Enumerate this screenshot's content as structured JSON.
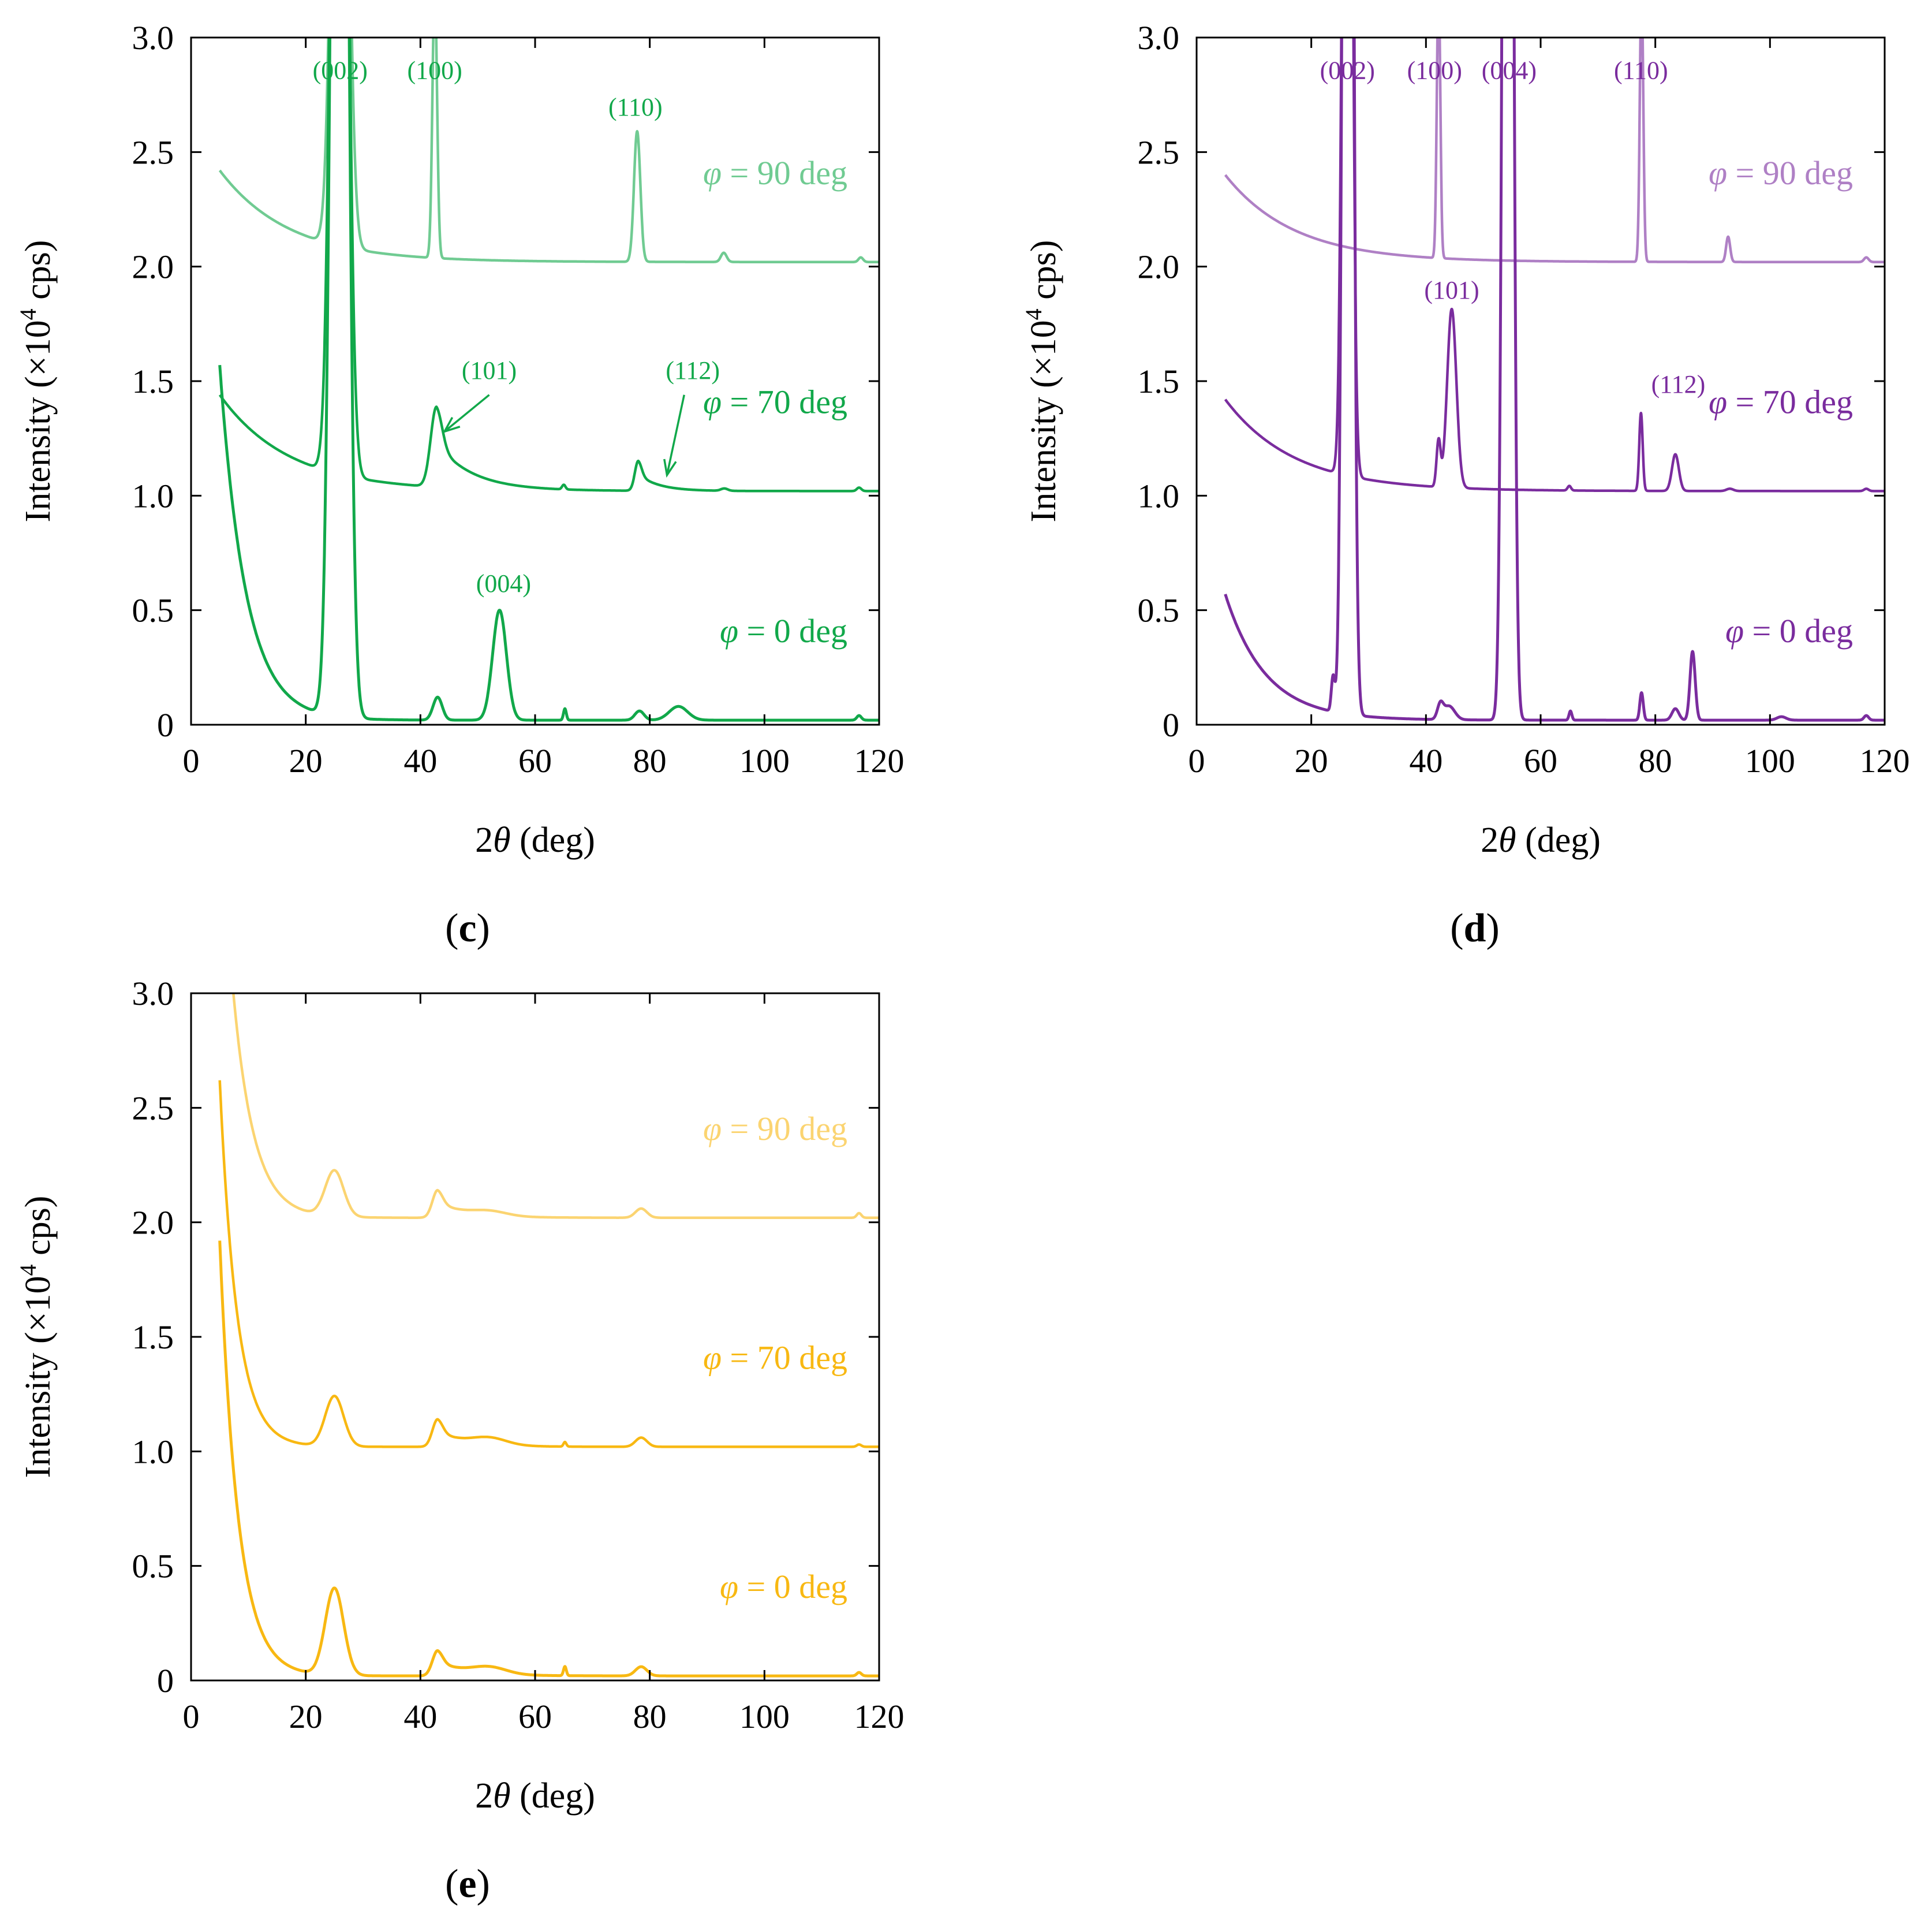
{
  "chart_data": [
    {
      "panel": "c",
      "caption_letter": "c",
      "type": "line",
      "color": "#11a84a",
      "xlabel_prefix": "2",
      "xlabel_symbol": "θ",
      "xlabel_suffix": " (deg)",
      "ylabel_prefix": "Intensity (×10",
      "ylabel_exp": "4",
      "ylabel_suffix": " cps)",
      "xlim": [
        0,
        120
      ],
      "ylim": [
        0,
        3.0
      ],
      "xticks": [
        0,
        20,
        40,
        60,
        80,
        100,
        120
      ],
      "xtick_labels": [
        "0",
        "20",
        "40",
        "60",
        "80",
        "100",
        "120"
      ],
      "yticks": [
        0,
        0.5,
        1.0,
        1.5,
        2.0,
        2.5,
        3.0
      ],
      "ytick_labels": [
        "0",
        "0.5",
        "1.0",
        "1.5",
        "2.0",
        "2.5",
        "3.0"
      ],
      "series": [
        {
          "name": "φ = 0 deg",
          "label_value": "= 0 deg",
          "label_symbol": "φ",
          "label_y": 0.36,
          "opacity": 1.0,
          "baseline": 0.02,
          "bg_amp": 1.55,
          "bg_decay": 4.5,
          "end_value": 0.02,
          "peaks": [
            {
              "x": 25.9,
              "h": 8.0,
              "w": 1.2
            },
            {
              "x": 43.0,
              "h": 0.1,
              "w": 0.8
            },
            {
              "x": 53.8,
              "h": 0.48,
              "w": 1.2
            },
            {
              "x": 65.2,
              "h": 0.05,
              "w": 0.25
            },
            {
              "x": 78.2,
              "h": 0.04,
              "w": 0.8
            },
            {
              "x": 85.0,
              "h": 0.06,
              "w": 1.6
            },
            {
              "x": 116.5,
              "h": 0.02,
              "w": 0.4
            }
          ]
        },
        {
          "name": "φ = 70 deg",
          "label_value": "= 70 deg",
          "label_symbol": "φ",
          "label_y": 1.36,
          "opacity": 1.0,
          "baseline": 1.02,
          "bg_amp": 0.42,
          "bg_decay": 12,
          "end_value": 1.02,
          "peaks": [
            {
              "x": 25.9,
              "h": 6.0,
              "w": 1.2
            },
            {
              "x": 42.8,
              "h": 0.35,
              "w": 1.0,
              "tail": 0.25
            },
            {
              "x": 65.0,
              "h": 0.02,
              "w": 0.3
            },
            {
              "x": 78.0,
              "h": 0.13,
              "w": 0.6,
              "tail": 0.12
            },
            {
              "x": 93.0,
              "h": 0.01,
              "w": 0.6
            },
            {
              "x": 116.5,
              "h": 0.015,
              "w": 0.4
            }
          ]
        },
        {
          "name": "φ = 90 deg",
          "label_value": "= 90 deg",
          "label_symbol": "φ",
          "label_y": 2.36,
          "opacity": 0.6,
          "baseline": 2.02,
          "bg_amp": 0.4,
          "bg_decay": 12,
          "end_value": 2.01,
          "peaks": [
            {
              "x": 26.0,
              "h": 4.0,
              "w": 1.2
            },
            {
              "x": 42.5,
              "h": 1.2,
              "w": 0.4
            },
            {
              "x": 77.8,
              "h": 0.57,
              "w": 0.55
            },
            {
              "x": 92.9,
              "h": 0.04,
              "w": 0.5
            },
            {
              "x": 116.8,
              "h": 0.02,
              "w": 0.4
            }
          ]
        }
      ],
      "annotations": [
        {
          "text": "(002)",
          "x": 26.0,
          "y": 2.82
        },
        {
          "text": "(100)",
          "x": 42.5,
          "y": 2.82
        },
        {
          "text": "(110)",
          "x": 77.5,
          "y": 2.66
        },
        {
          "text": "(101)",
          "x": 52.0,
          "y": 1.51
        },
        {
          "text": "(112)",
          "x": 87.5,
          "y": 1.51
        },
        {
          "text": "(004)",
          "x": 54.5,
          "y": 0.58
        }
      ],
      "arrows": [
        {
          "x1": 52,
          "y1": 1.44,
          "x2": 44.2,
          "y2": 1.28
        },
        {
          "x1": 86,
          "y1": 1.44,
          "x2": 83.0,
          "y2": 1.09
        }
      ]
    },
    {
      "panel": "d",
      "caption_letter": "d",
      "type": "line",
      "color": "#7a2c9e",
      "xlabel_prefix": "2",
      "xlabel_symbol": "θ",
      "xlabel_suffix": " (deg)",
      "ylabel_prefix": "Intensity (×10",
      "ylabel_exp": "4",
      "ylabel_suffix": " cps)",
      "xlim": [
        0,
        120
      ],
      "ylim": [
        0,
        3.0
      ],
      "xticks": [
        0,
        20,
        40,
        60,
        80,
        100,
        120
      ],
      "xtick_labels": [
        "0",
        "20",
        "40",
        "60",
        "80",
        "100",
        "120"
      ],
      "yticks": [
        0,
        0.5,
        1.0,
        1.5,
        2.0,
        2.5,
        3.0
      ],
      "ytick_labels": [
        "0",
        "0.5",
        "1.0",
        "1.5",
        "2.0",
        "2.5",
        "3.0"
      ],
      "series": [
        {
          "name": "φ = 0 deg",
          "label_value": "= 0 deg",
          "label_symbol": "φ",
          "label_y": 0.36,
          "opacity": 1.0,
          "baseline": 0.02,
          "bg_amp": 0.55,
          "bg_decay": 7,
          "end_value": 0.02,
          "peaks": [
            {
              "x": 23.8,
              "h": 0.15,
              "w": 0.3
            },
            {
              "x": 26.4,
              "h": 10.0,
              "w": 0.7
            },
            {
              "x": 42.5,
              "h": 0.06,
              "w": 0.5
            },
            {
              "x": 44.0,
              "h": 0.06,
              "w": 1.0
            },
            {
              "x": 54.3,
              "h": 10.0,
              "w": 0.7
            },
            {
              "x": 65.2,
              "h": 0.04,
              "w": 0.25
            },
            {
              "x": 77.6,
              "h": 0.12,
              "w": 0.3
            },
            {
              "x": 83.5,
              "h": 0.05,
              "w": 0.6
            },
            {
              "x": 86.5,
              "h": 0.3,
              "w": 0.45
            },
            {
              "x": 102.0,
              "h": 0.015,
              "w": 0.8
            },
            {
              "x": 116.8,
              "h": 0.02,
              "w": 0.4
            }
          ]
        },
        {
          "name": "φ = 70 deg",
          "label_value": "= 70 deg",
          "label_symbol": "φ",
          "label_y": 1.36,
          "opacity": 1.0,
          "baseline": 1.02,
          "bg_amp": 0.4,
          "bg_decay": 12,
          "end_value": 1.02,
          "peaks": [
            {
              "x": 26.3,
              "h": 6.0,
              "w": 0.7
            },
            {
              "x": 42.2,
              "h": 0.2,
              "w": 0.35
            },
            {
              "x": 44.5,
              "h": 0.78,
              "w": 0.8
            },
            {
              "x": 65.0,
              "h": 0.02,
              "w": 0.3
            },
            {
              "x": 77.5,
              "h": 0.34,
              "w": 0.3
            },
            {
              "x": 83.5,
              "h": 0.16,
              "w": 0.6
            },
            {
              "x": 93.0,
              "h": 0.01,
              "w": 0.6
            },
            {
              "x": 116.8,
              "h": 0.01,
              "w": 0.4
            }
          ]
        },
        {
          "name": "φ = 90 deg",
          "label_value": "= 90 deg",
          "label_symbol": "φ",
          "label_y": 2.36,
          "opacity": 0.6,
          "baseline": 2.02,
          "bg_amp": 0.38,
          "bg_decay": 12,
          "end_value": 2.01,
          "peaks": [
            {
              "x": 42.2,
              "h": 1.2,
              "w": 0.3
            },
            {
              "x": 77.6,
              "h": 1.2,
              "w": 0.3
            },
            {
              "x": 92.7,
              "h": 0.11,
              "w": 0.35
            },
            {
              "x": 116.8,
              "h": 0.02,
              "w": 0.4
            }
          ]
        }
      ],
      "annotations": [
        {
          "text": "(002)",
          "x": 26.3,
          "y": 2.82
        },
        {
          "text": "(100)",
          "x": 41.5,
          "y": 2.82
        },
        {
          "text": "(004)",
          "x": 54.5,
          "y": 2.82
        },
        {
          "text": "(110)",
          "x": 77.5,
          "y": 2.82
        },
        {
          "text": "(101)",
          "x": 44.5,
          "y": 1.86
        },
        {
          "text": "(112)",
          "x": 84.0,
          "y": 1.45
        }
      ],
      "arrows": []
    },
    {
      "panel": "e",
      "caption_letter": "e",
      "type": "line",
      "color": "#f8b812",
      "xlabel_prefix": "2",
      "xlabel_symbol": "θ",
      "xlabel_suffix": " (deg)",
      "ylabel_prefix": "Intensity (×10",
      "ylabel_exp": "4",
      "ylabel_suffix": " cps)",
      "xlim": [
        0,
        120
      ],
      "ylim": [
        0,
        3.0
      ],
      "xticks": [
        0,
        20,
        40,
        60,
        80,
        100,
        120
      ],
      "xtick_labels": [
        "0",
        "20",
        "40",
        "60",
        "80",
        "100",
        "120"
      ],
      "yticks": [
        0,
        0.5,
        1.0,
        1.5,
        2.0,
        2.5,
        3.0
      ],
      "ytick_labels": [
        "0",
        "0.5",
        "1.0",
        "1.5",
        "2.0",
        "2.5",
        "3.0"
      ],
      "series": [
        {
          "name": "φ = 0 deg",
          "label_value": "= 0 deg",
          "label_symbol": "φ",
          "label_y": 0.36,
          "opacity": 1.0,
          "baseline": 0.02,
          "bg_amp": 1.9,
          "bg_decay": 3.2,
          "end_value": 0.02,
          "peaks": [
            {
              "x": 25.0,
              "h": 0.38,
              "w": 1.6
            },
            {
              "x": 43.0,
              "h": 0.11,
              "w": 0.9,
              "tail": 0.04
            },
            {
              "x": 52.0,
              "h": 0.03,
              "w": 3.0
            },
            {
              "x": 65.2,
              "h": 0.04,
              "w": 0.25
            },
            {
              "x": 78.5,
              "h": 0.04,
              "w": 1.0
            },
            {
              "x": 116.5,
              "h": 0.015,
              "w": 0.4
            }
          ]
        },
        {
          "name": "φ = 70 deg",
          "label_value": "= 70 deg",
          "label_symbol": "φ",
          "label_y": 1.36,
          "opacity": 1.0,
          "baseline": 1.02,
          "bg_amp": 1.6,
          "bg_decay": 3.0,
          "end_value": 1.02,
          "peaks": [
            {
              "x": 25.0,
              "h": 0.22,
              "w": 1.6
            },
            {
              "x": 43.0,
              "h": 0.12,
              "w": 0.9,
              "tail": 0.04
            },
            {
              "x": 52.0,
              "h": 0.03,
              "w": 3.0
            },
            {
              "x": 65.2,
              "h": 0.02,
              "w": 0.25
            },
            {
              "x": 78.5,
              "h": 0.04,
              "w": 1.0
            },
            {
              "x": 116.5,
              "h": 0.01,
              "w": 0.4
            }
          ]
        },
        {
          "name": "φ = 90 deg",
          "label_value": "= 90 deg",
          "label_symbol": "φ",
          "label_y": 2.36,
          "opacity": 0.6,
          "baseline": 2.02,
          "bg_amp": 1.9,
          "bg_decay": 3.6,
          "end_value": 2.02,
          "peaks": [
            {
              "x": 25.0,
              "h": 0.2,
              "w": 1.6
            },
            {
              "x": 43.0,
              "h": 0.12,
              "w": 0.9,
              "tail": 0.04
            },
            {
              "x": 52.0,
              "h": 0.02,
              "w": 3.0
            },
            {
              "x": 78.5,
              "h": 0.04,
              "w": 1.0
            },
            {
              "x": 116.5,
              "h": 0.02,
              "w": 0.4
            }
          ]
        }
      ],
      "annotations": [],
      "arrows": []
    }
  ]
}
